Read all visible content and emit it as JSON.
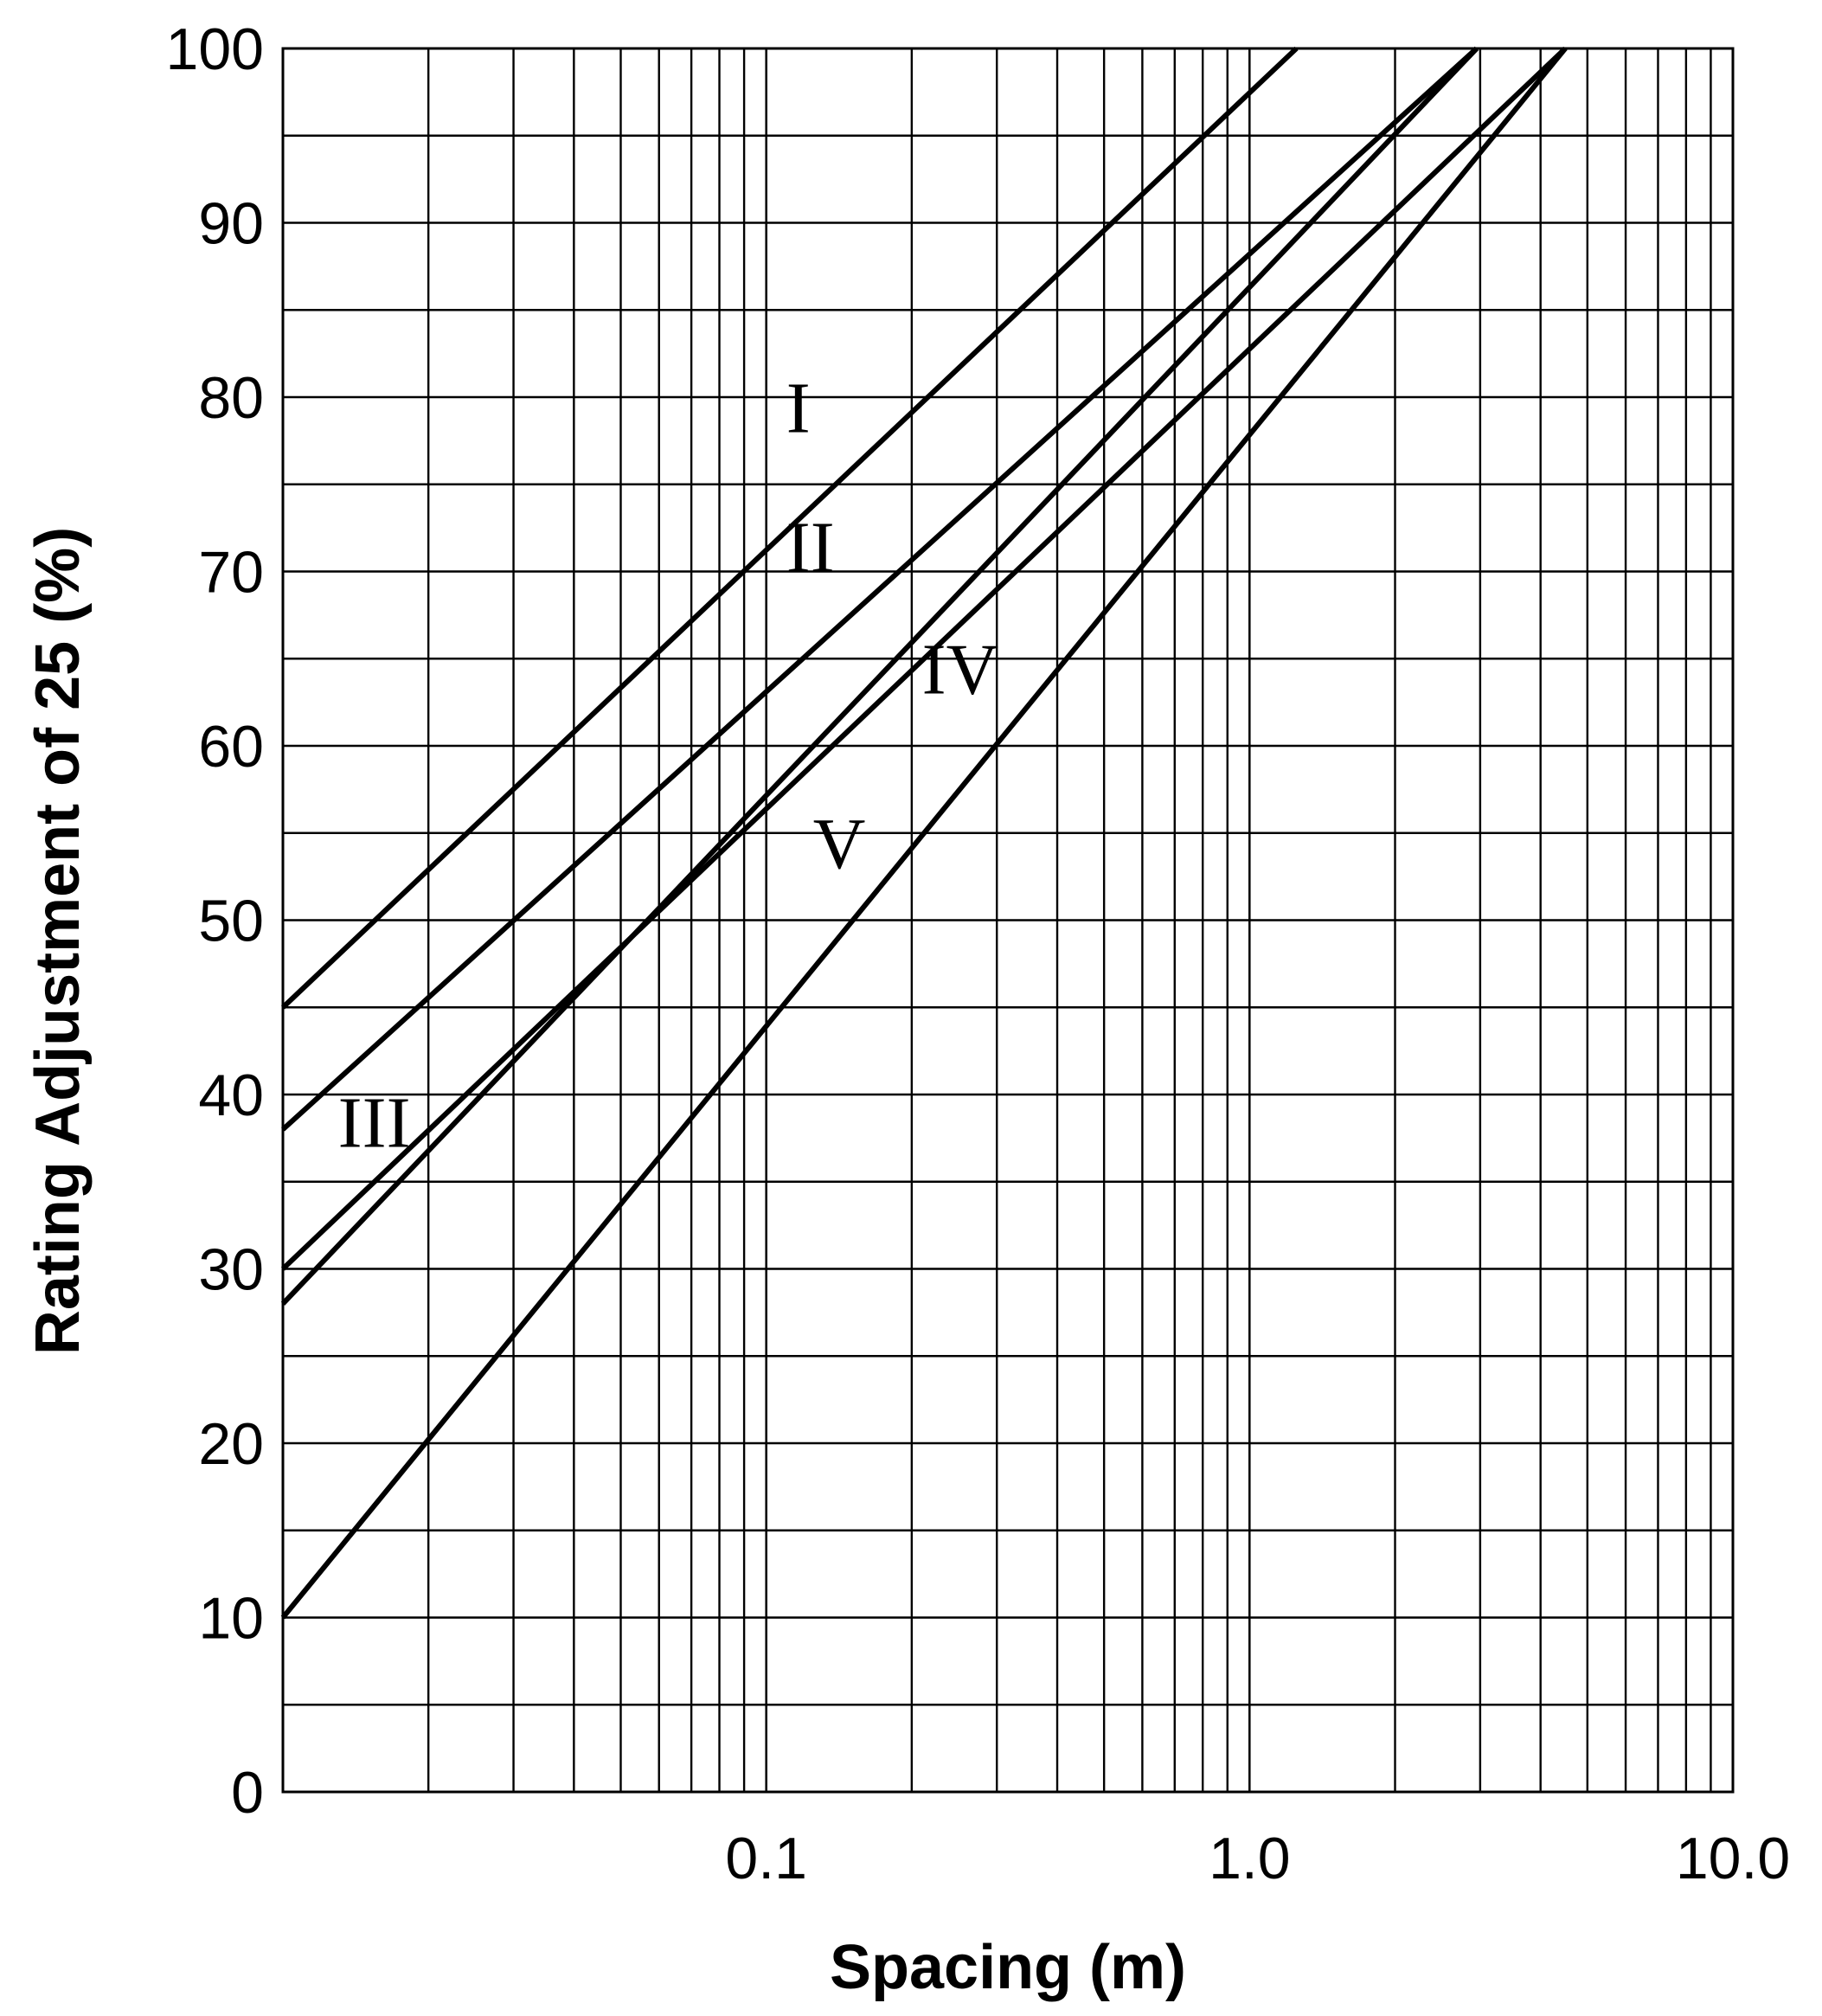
{
  "chart_data": {
    "type": "line",
    "title": "",
    "xlabel": "Spacing (m)",
    "ylabel": "Rating Adjustment of 25 (%)",
    "x_scale": "log",
    "xlim": [
      0.01,
      10
    ],
    "ylim": [
      0,
      100
    ],
    "grid": true,
    "legend": "none",
    "x_tick_values": [
      0.1,
      1,
      10
    ],
    "x_tick_labels": [
      "0.1",
      "1.0",
      "10.0"
    ],
    "y_ticks": [
      "0",
      "10",
      "20",
      "30",
      "40",
      "50",
      "60",
      "70",
      "80",
      "90",
      "100"
    ],
    "series": [
      {
        "name": "I",
        "x": [
          0.01,
          1.25
        ],
        "y": [
          45,
          100
        ],
        "label_at": [
          0.11,
          78
        ]
      },
      {
        "name": "II",
        "x": [
          0.01,
          2.95
        ],
        "y": [
          38,
          100
        ],
        "label_at": [
          0.11,
          70
        ]
      },
      {
        "name": "III",
        "x": [
          0.01,
          2.95
        ],
        "y": [
          28,
          100
        ],
        "label_at": [
          0.013,
          37
        ]
      },
      {
        "name": "IV",
        "x": [
          0.01,
          4.5
        ],
        "y": [
          30,
          100
        ],
        "label_at": [
          0.21,
          63
        ]
      },
      {
        "name": "V",
        "x": [
          0.01,
          4.5
        ],
        "y": [
          10,
          100
        ],
        "label_at": [
          0.125,
          53
        ]
      }
    ]
  }
}
